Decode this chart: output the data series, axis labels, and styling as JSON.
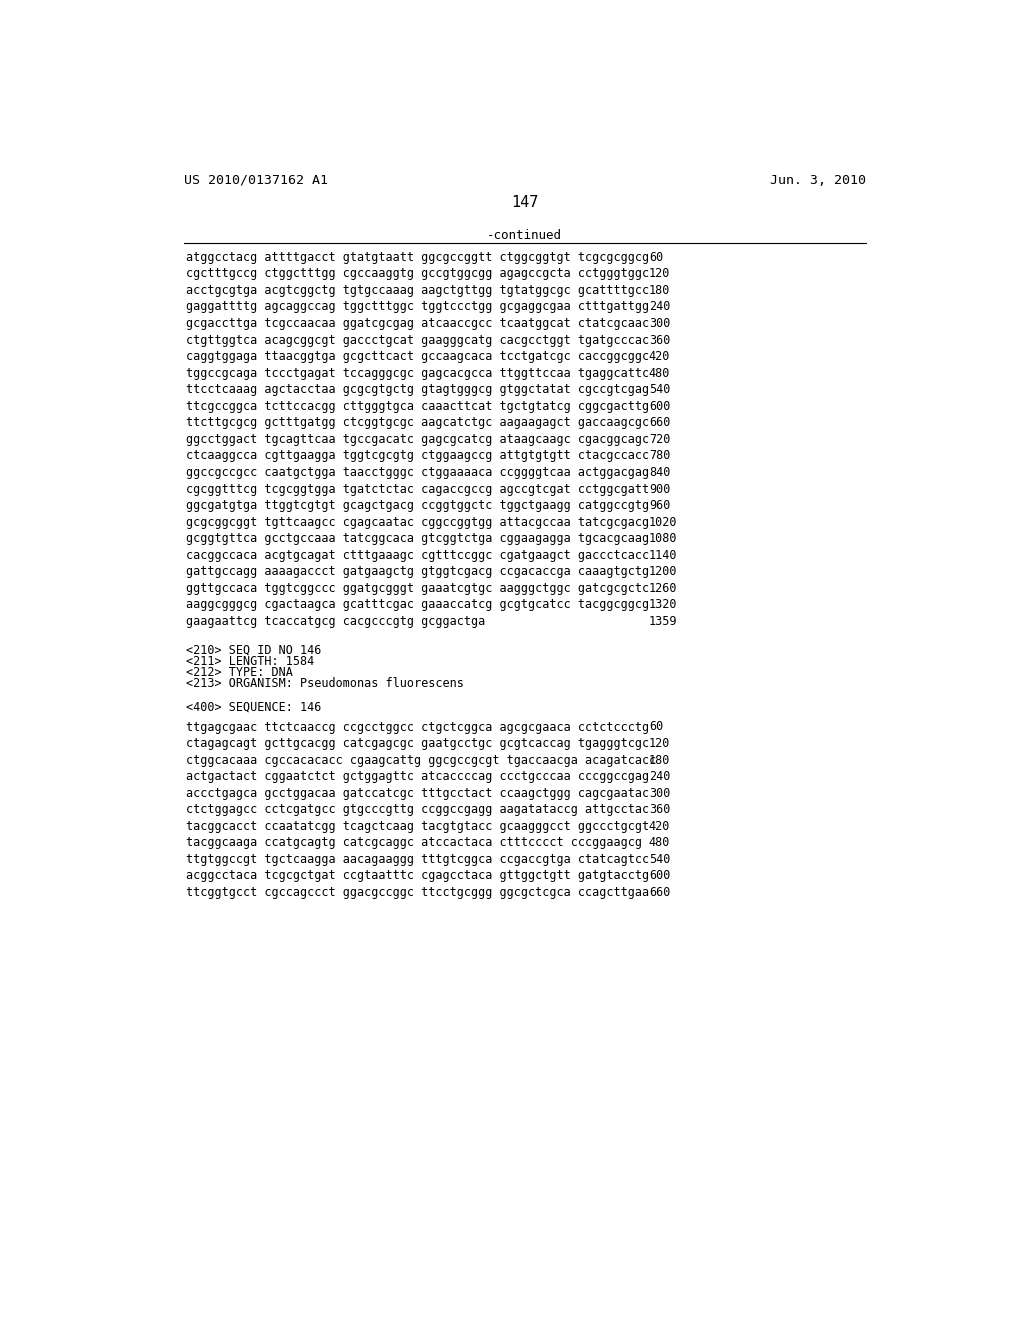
{
  "header_left": "US 2010/0137162 A1",
  "header_right": "Jun. 3, 2010",
  "page_number": "147",
  "continued_label": "-continued",
  "background_color": "#ffffff",
  "text_color": "#000000",
  "sequence_lines": [
    [
      "atggcctacg attttgacct gtatgtaatt ggcgccggtt ctggcggtgt tcgcgcggcg",
      "60"
    ],
    [
      "cgctttgccg ctggctttgg cgccaaggtg gccgtggcgg agagccgcta cctgggtggc",
      "120"
    ],
    [
      "acctgcgtga acgtcggctg tgtgccaaag aagctgttgg tgtatggcgc gcattttgcc",
      "180"
    ],
    [
      "gaggattttg agcaggccag tggctttggc tggtccctgg gcgaggcgaa ctttgattgg",
      "240"
    ],
    [
      "gcgaccttga tcgccaacaa ggatcgcgag atcaaccgcc tcaatggcat ctatcgcaac",
      "300"
    ],
    [
      "ctgttggtca acagcggcgt gaccctgcat gaagggcatg cacgcctggt tgatgcccac",
      "360"
    ],
    [
      "caggtggaga ttaacggtga gcgcttcact gccaagcaca tcctgatcgc caccggcggc",
      "420"
    ],
    [
      "tggccgcaga tccctgagat tccagggcgc gagcacgcca ttggttccaa tgaggcattc",
      "480"
    ],
    [
      "ttcctcaaag agctacctaa gcgcgtgctg gtagtgggcg gtggctatat cgccgtcgag",
      "540"
    ],
    [
      "ttcgccggca tcttccacgg cttgggtgca caaacttcat tgctgtatcg cggcgacttg",
      "600"
    ],
    [
      "ttcttgcgcg gctttgatgg ctcggtgcgc aagcatctgc aagaagagct gaccaagcgc",
      "660"
    ],
    [
      "ggcctggact tgcagttcaa tgccgacatc gagcgcatcg ataagcaagc cgacggcagc",
      "720"
    ],
    [
      "ctcaaggcca cgttgaagga tggtcgcgtg ctggaagccg attgtgtgtt ctacgccacc",
      "780"
    ],
    [
      "ggccgccgcc caatgctgga taacctgggc ctggaaaaca ccggggtcaa actggacgag",
      "840"
    ],
    [
      "cgcggtttcg tcgcggtgga tgatctctac cagaccgccg agccgtcgat cctggcgatt",
      "900"
    ],
    [
      "ggcgatgtga ttggtcgtgt gcagctgacg ccggtggctc tggctgaagg catggccgtg",
      "960"
    ],
    [
      "gcgcggcggt tgttcaagcc cgagcaatac cggccggtgg attacgccaa tatcgcgacg",
      "1020"
    ],
    [
      "gcggtgttca gcctgccaaa tatcggcaca gtcggtctga cggaagagga tgcacgcaag",
      "1080"
    ],
    [
      "cacggccaca acgtgcagat ctttgaaagc cgtttccggc cgatgaagct gaccctcacc",
      "1140"
    ],
    [
      "gattgccagg aaaagaccct gatgaagctg gtggtcgacg ccgacaccga caaagtgctg",
      "1200"
    ],
    [
      "ggttgccaca tggtcggccc ggatgcgggt gaaatcgtgc aagggctggc gatcgcgctc",
      "1260"
    ],
    [
      "aaggcgggcg cgactaagca gcatttcgac gaaaccatcg gcgtgcatcc tacggcggcg",
      "1320"
    ],
    [
      "gaagaattcg tcaccatgcg cacgcccgtg gcggactga",
      "1359"
    ]
  ],
  "metadata_lines": [
    "<210> SEQ ID NO 146",
    "<211> LENGTH: 1584",
    "<212> TYPE: DNA",
    "<213> ORGANISM: Pseudomonas fluorescens"
  ],
  "seq400_label": "<400> SEQUENCE: 146",
  "sequence2_lines": [
    [
      "ttgagcgaac ttctcaaccg ccgcctggcc ctgctcggca agcgcgaaca cctctccctg",
      "60"
    ],
    [
      "ctagagcagt gcttgcacgg catcgagcgc gaatgcctgc gcgtcaccag tgagggtcgc",
      "120"
    ],
    [
      "ctggcacaaa cgccacacacc cgaagcattg ggcgccgcgt tgaccaacga acagatcacc",
      "180"
    ],
    [
      "actgactact cggaatctct gctggagttc atcaccccag ccctgcccaa cccggccgag",
      "240"
    ],
    [
      "accctgagca gcctggacaa gatccatcgc tttgcctact ccaagctggg cagcgaatac",
      "300"
    ],
    [
      "ctctggagcc cctcgatgcc gtgcccgttg ccggccgagg aagatataccg attgcctac",
      "360"
    ],
    [
      "tacggcacct ccaatatcgg tcagctcaag tacgtgtacc gcaagggcct ggccctgcgt",
      "420"
    ],
    [
      "tacggcaaga ccatgcagtg catcgcaggc atccactaca ctttcccct cccggaagcg",
      "480"
    ],
    [
      "ttgtggccgt tgctcaagga aacagaaggg tttgtcggca ccgaccgtga ctatcagtcc",
      "540"
    ],
    [
      "acggcctaca tcgcgctgat ccgtaatttc cgagcctaca gttggctgtt gatgtacctg",
      "600"
    ],
    [
      "ttcggtgcct cgccagccct ggacgccggc ttcctgcggg ggcgctcgca ccagcttgaa",
      "660"
    ]
  ]
}
